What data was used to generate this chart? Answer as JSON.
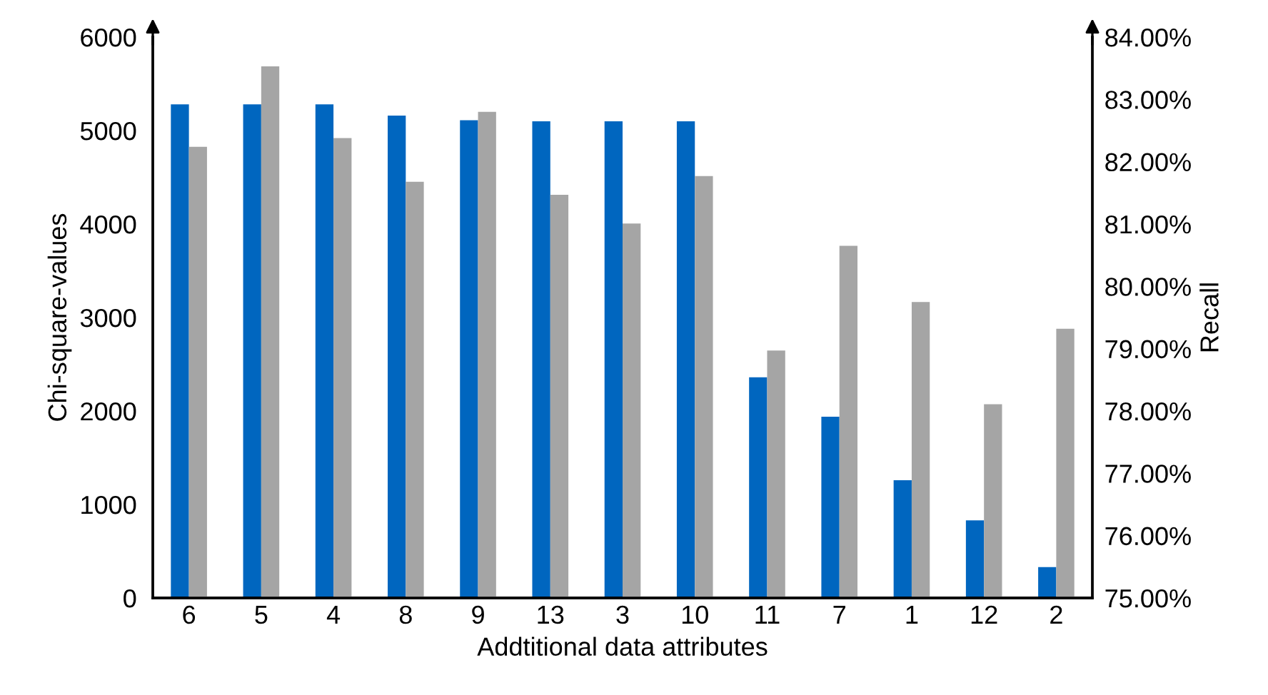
{
  "chart_data": {
    "type": "bar",
    "xlabel": "Addtitional data attributes",
    "ylabel": "Chi-square-values",
    "y2label": "Recall",
    "categories": [
      "6",
      "5",
      "4",
      "8",
      "9",
      "13",
      "3",
      "10",
      "11",
      "7",
      "1",
      "12",
      "2"
    ],
    "series": [
      {
        "color": "#0066bf",
        "values": [
          5280,
          5280,
          5280,
          5160,
          5110,
          5100,
          5100,
          5100,
          2360,
          1940,
          1260,
          830,
          330
        ]
      },
      {
        "color": "#a5a5a5",
        "axis": "y2",
        "values": [
          82.24,
          83.53,
          82.38,
          81.68,
          82.8,
          81.47,
          81.01,
          81.77,
          78.97,
          80.65,
          79.75,
          78.11,
          79.32
        ]
      }
    ],
    "ylim": [
      0,
      6000
    ],
    "yticks": [
      0,
      1000,
      2000,
      3000,
      4000,
      5000,
      6000
    ],
    "y2lim": [
      75,
      84
    ],
    "y2ticks": [
      {
        "value": 75,
        "label": "75.00%"
      },
      {
        "value": 76,
        "label": "76.00%"
      },
      {
        "value": 77,
        "label": "77.00%"
      },
      {
        "value": 78,
        "label": "78.00%"
      },
      {
        "value": 79,
        "label": "79.00%"
      },
      {
        "value": 80,
        "label": "80.00%"
      },
      {
        "value": 81,
        "label": "81.00%"
      },
      {
        "value": 82,
        "label": "82.00%"
      },
      {
        "value": 83,
        "label": "83.00%"
      },
      {
        "value": 84,
        "label": "84.00%"
      }
    ],
    "grid": false,
    "legend": false
  }
}
